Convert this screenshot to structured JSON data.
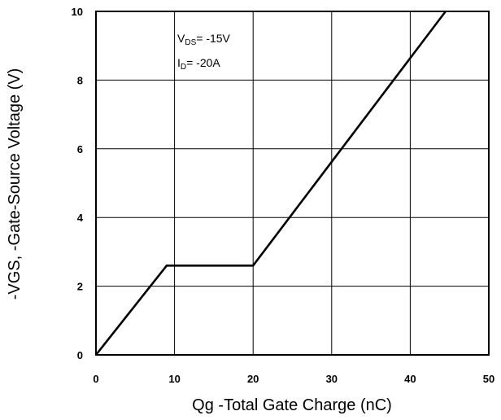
{
  "chart_data": {
    "type": "line",
    "title": "",
    "xlabel": "Qg -Total Gate Charge (nC)",
    "ylabel": "-VGS, -Gate-Source Voltage (V)",
    "xlim": [
      0,
      50
    ],
    "ylim": [
      0,
      10
    ],
    "x_ticks": [
      "0",
      "10",
      "20",
      "30",
      "40",
      "50"
    ],
    "y_ticks": [
      "0",
      "2",
      "4",
      "6",
      "8",
      "10"
    ],
    "grid": true,
    "series": [
      {
        "color": "#000000",
        "x": [
          0,
          9,
          20,
          44.5
        ],
        "y": [
          0,
          2.6,
          2.6,
          10
        ]
      }
    ],
    "annotations": {
      "vds": {
        "main": "V",
        "sub": "DS",
        "rest": "= -15V"
      },
      "id": {
        "main": "I",
        "sub": "D",
        "rest": "= -20A"
      }
    }
  }
}
